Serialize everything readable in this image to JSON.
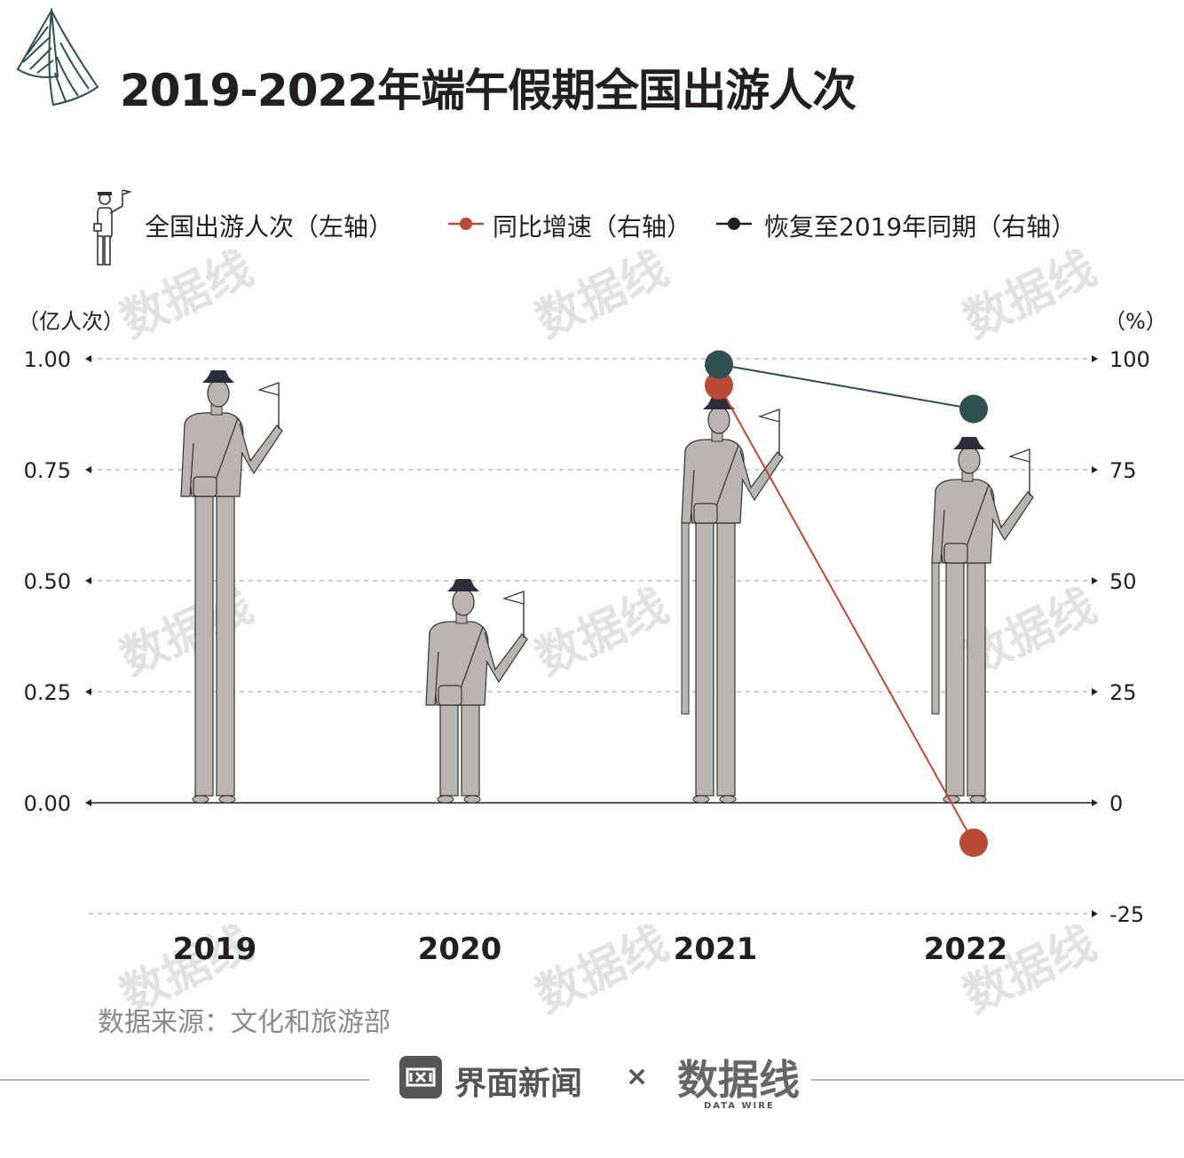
{
  "title": "2019-2022年端午假期全国出游人次",
  "legend": {
    "trips": "全国出游人次（左轴）",
    "growth": "同比增速（右轴）",
    "recovery": "恢复至2019年同期（右轴）"
  },
  "left_unit": "（亿人次）",
  "right_unit": "（%）",
  "source": "数据来源：文化和旅游部",
  "brand": {
    "jiemian": "界面新闻",
    "times": "×",
    "datawire": "数据线",
    "datawire_sub": "DATA WIRE"
  },
  "watermark": {
    "text": "数据线",
    "sub": "DATA WIRE"
  },
  "colors": {
    "growth": "#b94a35",
    "recovery": "#2f4f50",
    "figure": "#b9b5b2",
    "grid": "#999999",
    "hat": "#2b2d3a"
  },
  "chart_data": {
    "type": "bar",
    "categories": [
      "2019",
      "2020",
      "2021",
      "2022"
    ],
    "left_axis": {
      "min": 0,
      "max": 1.0,
      "ticks": [
        "0.00",
        "0.25",
        "0.50",
        "0.75",
        "1.00"
      ]
    },
    "right_axis": {
      "min": -25,
      "max": 100,
      "ticks": [
        "-25",
        "0",
        "25",
        "50",
        "75",
        "100"
      ]
    },
    "series": [
      {
        "name": "全国出游人次（左轴）",
        "axis": "left",
        "style": "figure",
        "values": [
          0.95,
          0.48,
          0.89,
          0.8
        ]
      },
      {
        "name": "同比增速（右轴）",
        "axis": "right",
        "style": "line",
        "values": [
          null,
          null,
          94,
          -9
        ]
      },
      {
        "name": "恢复至2019年同期（右轴）",
        "axis": "right",
        "style": "line",
        "values": [
          null,
          null,
          98.7,
          88.7
        ]
      }
    ],
    "grid": "dashed horizontal",
    "legend_position": "top"
  }
}
